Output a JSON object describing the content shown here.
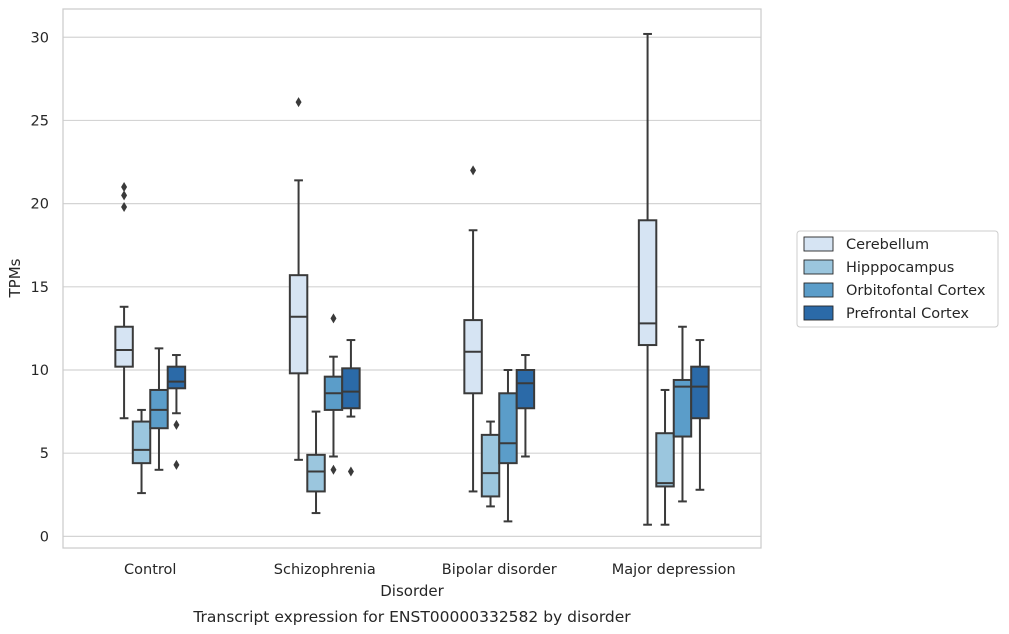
{
  "chart_data": {
    "type": "box",
    "title": "",
    "caption": "Transcript expression for ENST00000332582 by disorder",
    "xlabel": "Disorder",
    "ylabel": "TPMs",
    "ylim": [
      -0.7,
      31.7
    ],
    "yticks": [
      0,
      5,
      10,
      15,
      20,
      25,
      30
    ],
    "grid": "horizontal",
    "legend_position": "right",
    "categories": [
      "Control",
      "Schizophrenia",
      "Bipolar disorder",
      "Major depression"
    ],
    "series": [
      {
        "name": "Cerebellum",
        "color": "#d6e4f3",
        "boxes": [
          {
            "whisker_low": 7.1,
            "q1": 10.2,
            "median": 11.2,
            "q3": 12.6,
            "whisker_high": 13.8,
            "outliers": [
              19.8,
              20.5,
              21.0
            ]
          },
          {
            "whisker_low": 4.6,
            "q1": 9.8,
            "median": 13.2,
            "q3": 15.7,
            "whisker_high": 21.4,
            "outliers": [
              26.1
            ]
          },
          {
            "whisker_low": 2.7,
            "q1": 8.6,
            "median": 11.1,
            "q3": 13.0,
            "whisker_high": 18.4,
            "outliers": [
              22.0
            ]
          },
          {
            "whisker_low": 0.7,
            "q1": 11.5,
            "median": 12.8,
            "q3": 19.0,
            "whisker_high": 30.2,
            "outliers": []
          }
        ]
      },
      {
        "name": "Hipppocampus",
        "color": "#9bc6de",
        "boxes": [
          {
            "whisker_low": 2.6,
            "q1": 4.4,
            "median": 5.2,
            "q3": 6.9,
            "whisker_high": 7.6,
            "outliers": []
          },
          {
            "whisker_low": 1.4,
            "q1": 2.7,
            "median": 3.9,
            "q3": 4.9,
            "whisker_high": 7.5,
            "outliers": []
          },
          {
            "whisker_low": 1.8,
            "q1": 2.4,
            "median": 3.8,
            "q3": 6.1,
            "whisker_high": 6.9,
            "outliers": []
          },
          {
            "whisker_low": 0.7,
            "q1": 3.0,
            "median": 3.2,
            "q3": 6.2,
            "whisker_high": 8.8,
            "outliers": []
          }
        ]
      },
      {
        "name": "Orbitofontal Cortex",
        "color": "#5b9dc9",
        "boxes": [
          {
            "whisker_low": 4.0,
            "q1": 6.5,
            "median": 7.6,
            "q3": 8.8,
            "whisker_high": 11.3,
            "outliers": []
          },
          {
            "whisker_low": 4.8,
            "q1": 7.6,
            "median": 8.6,
            "q3": 9.6,
            "whisker_high": 10.8,
            "outliers": [
              4.0,
              13.1
            ]
          },
          {
            "whisker_low": 0.9,
            "q1": 4.4,
            "median": 5.6,
            "q3": 8.6,
            "whisker_high": 10.0,
            "outliers": []
          },
          {
            "whisker_low": 2.1,
            "q1": 6.0,
            "median": 9.0,
            "q3": 9.4,
            "whisker_high": 12.6,
            "outliers": []
          }
        ]
      },
      {
        "name": "Prefrontal Cortex",
        "color": "#2b6aa8",
        "boxes": [
          {
            "whisker_low": 7.4,
            "q1": 8.9,
            "median": 9.3,
            "q3": 10.2,
            "whisker_high": 10.9,
            "outliers": [
              6.7,
              4.3
            ]
          },
          {
            "whisker_low": 7.2,
            "q1": 7.7,
            "median": 8.7,
            "q3": 10.1,
            "whisker_high": 11.8,
            "outliers": [
              3.9
            ]
          },
          {
            "whisker_low": 4.8,
            "q1": 7.7,
            "median": 9.2,
            "q3": 10.0,
            "whisker_high": 10.9,
            "outliers": []
          },
          {
            "whisker_low": 2.8,
            "q1": 7.1,
            "median": 9.0,
            "q3": 10.2,
            "whisker_high": 11.8,
            "outliers": []
          }
        ]
      }
    ]
  }
}
